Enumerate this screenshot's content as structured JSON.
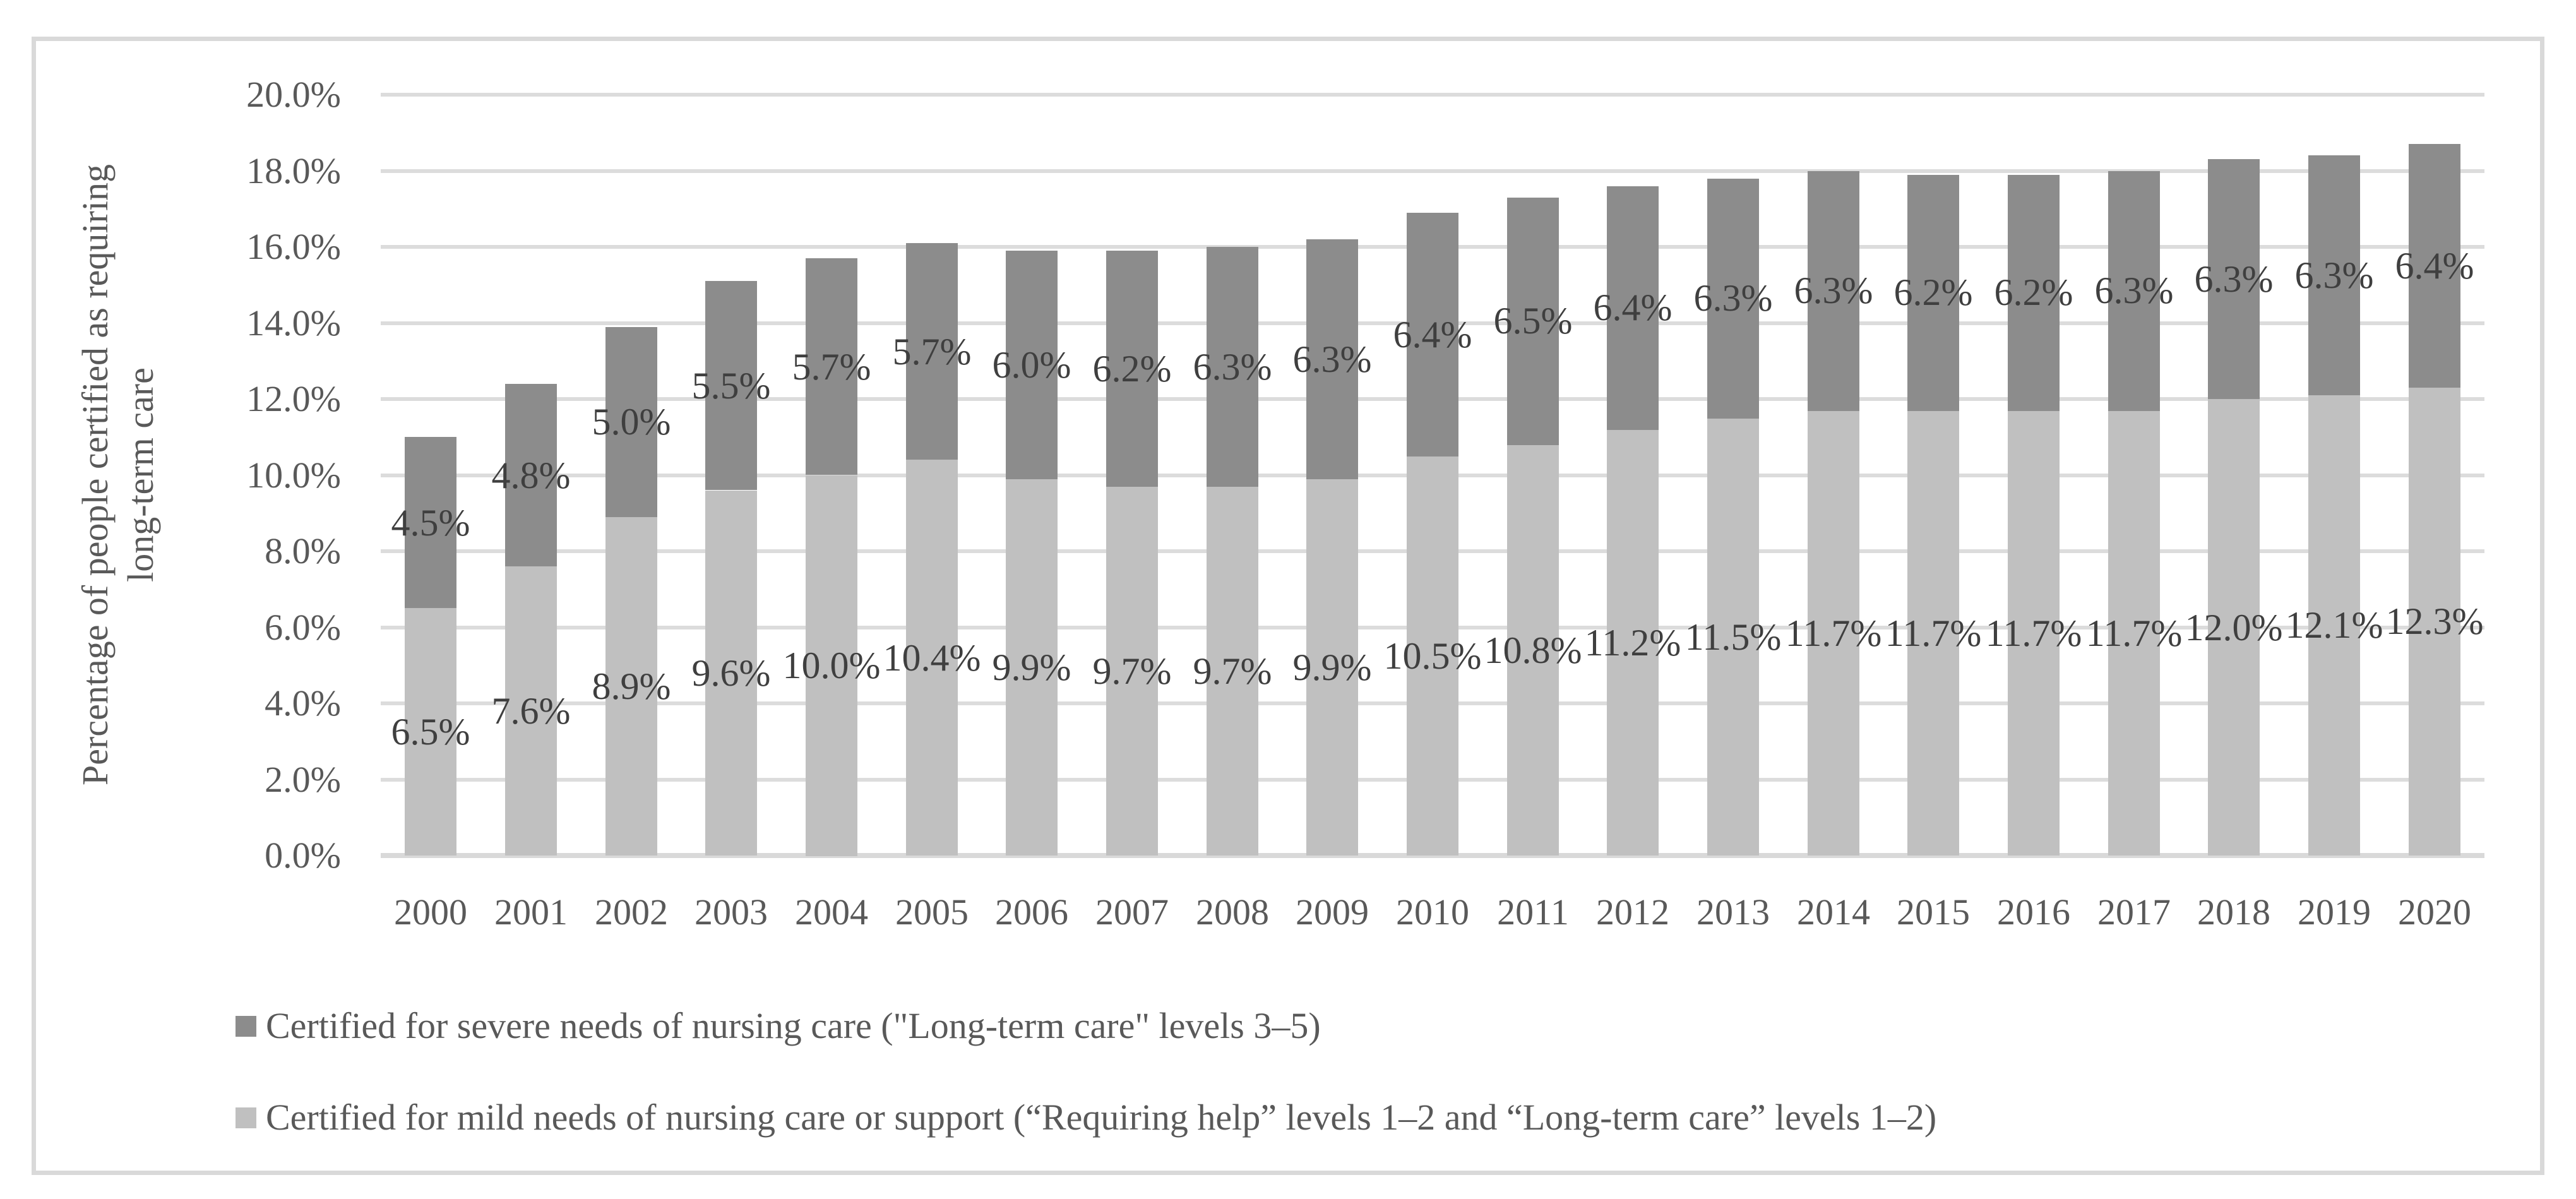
{
  "figure": {
    "background": "#ffffff",
    "border_color": "#d9d9d9"
  },
  "y_axis": {
    "title": "Percentage of people certified as requiring long-term care",
    "title_lines": [
      "Percentage of people certified as requiring",
      "long-term care"
    ],
    "tick_labels": [
      "0.0%",
      "2.0%",
      "4.0%",
      "6.0%",
      "8.0%",
      "10.0%",
      "12.0%",
      "14.0%",
      "16.0%",
      "18.0%",
      "20.0%"
    ],
    "min": 0,
    "max": 20,
    "step": 2,
    "text_color": "#595959"
  },
  "x_axis": {
    "tick_labels": [
      "2000",
      "2001",
      "2002",
      "2003",
      "2004",
      "2005",
      "2006",
      "2007",
      "2008",
      "2009",
      "2010",
      "2011",
      "2012",
      "2013",
      "2014",
      "2015",
      "2016",
      "2017",
      "2018",
      "2019",
      "2020"
    ],
    "text_color": "#595959"
  },
  "legend": {
    "position": "bottom-left",
    "text_color": "#595959",
    "items": [
      {
        "swatch_color": "#8c8c8c",
        "label": "Certified for severe needs of nursing care (\"Long-term care\" levels 3–5)"
      },
      {
        "swatch_color": "#c0c0c0",
        "label": "Certified for mild needs of nursing care or support (“Requiring help” levels 1–2 and “Long-term care” levels 1–2)"
      }
    ]
  },
  "chart_data": {
    "type": "bar",
    "stacked": true,
    "title": "",
    "xlabel": "",
    "ylabel": "Percentage of people certified as requiring long-term care",
    "ylim": [
      0,
      20
    ],
    "ytick_step": 2,
    "grid": true,
    "gridline_color": "#dcdcdc",
    "axis_line_color": "#d9d9d9",
    "data_label_color": "#3f3f3f",
    "legend_position": "bottom-left",
    "categories": [
      "2000",
      "2001",
      "2002",
      "2003",
      "2004",
      "2005",
      "2006",
      "2007",
      "2008",
      "2009",
      "2010",
      "2011",
      "2012",
      "2013",
      "2014",
      "2015",
      "2016",
      "2017",
      "2018",
      "2019",
      "2020"
    ],
    "series": [
      {
        "name": "Certified for severe needs of nursing care (\"Long-term care\" levels 3–5)",
        "color": "#8c8c8c",
        "stack_position": "top",
        "values": [
          4.5,
          4.8,
          5.0,
          5.5,
          5.7,
          5.7,
          6.0,
          6.2,
          6.3,
          6.3,
          6.4,
          6.5,
          6.4,
          6.3,
          6.3,
          6.2,
          6.2,
          6.3,
          6.3,
          6.3,
          6.4
        ],
        "data_labels": [
          "4.5%",
          "4.8%",
          "5.0%",
          "5.5%",
          "5.7%",
          "5.7%",
          "6.0%",
          "6.2%",
          "6.3%",
          "6.3%",
          "6.4%",
          "6.5%",
          "6.4%",
          "6.3%",
          "6.3%",
          "6.2%",
          "6.2%",
          "6.3%",
          "6.3%",
          "6.3%",
          "6.4%"
        ]
      },
      {
        "name": "Certified for mild needs of nursing care or support (“Requiring help” levels 1–2 and “Long-term care” levels 1–2)",
        "color": "#c0c0c0",
        "stack_position": "bottom",
        "values": [
          6.5,
          7.6,
          8.9,
          9.6,
          10.0,
          10.4,
          9.9,
          9.7,
          9.7,
          9.9,
          10.5,
          10.8,
          11.2,
          11.5,
          11.7,
          11.7,
          11.7,
          11.7,
          12.0,
          12.1,
          12.3
        ],
        "data_labels": [
          "6.5%",
          "7.6%",
          "8.9%",
          "9.6%",
          "10.0%",
          "10.4%",
          "9.9%",
          "9.7%",
          "9.7%",
          "9.9%",
          "10.5%",
          "10.8%",
          "11.2%",
          "11.5%",
          "11.7%",
          "11.7%",
          "11.7%",
          "11.7%",
          "12.0%",
          "12.1%",
          "12.3%"
        ]
      }
    ]
  }
}
